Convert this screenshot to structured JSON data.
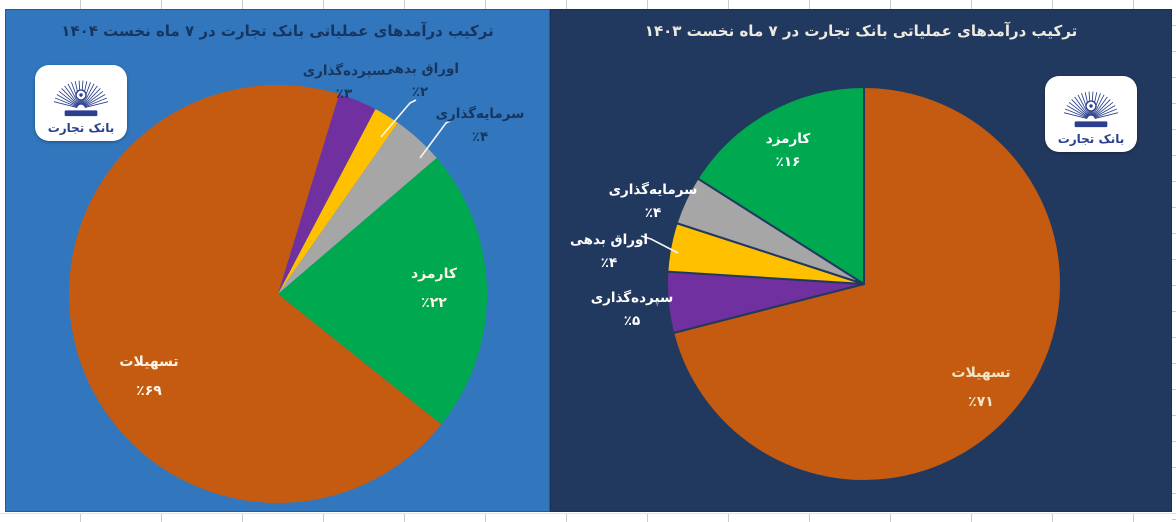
{
  "page": {
    "background": "#ffffff",
    "gridline_color": "#c9ced4"
  },
  "logo": {
    "text": "بانک تجارت",
    "emblem_color": "#2B3F8C",
    "box_color": "#ffffff"
  },
  "chart_data": [
    {
      "type": "pie",
      "title": "ترکیب درآمدهای عملیاتی بانک تجارت در ۷ ماه نخست ۱۴۰۴",
      "panel_bg": "#3277BD",
      "title_color": "#17355E",
      "start_angle": 17,
      "slice_stroke": "none",
      "legend_position": "labels-on-and-around-pie",
      "categories": [
        "سپرده‌گذاری",
        "اوراق بدهی",
        "سرمایه‌گذاری",
        "کارمزد",
        "تسهیلات"
      ],
      "values": [
        3,
        2,
        4,
        22,
        69
      ],
      "slices": [
        {
          "key": "deposit",
          "name": "سپرده‌گذاری",
          "value": 3,
          "pct_label": "٪۳",
          "color": "#7030A0"
        },
        {
          "key": "debt-securities",
          "name": "اوراق بدهی",
          "value": 2,
          "pct_label": "٪۲",
          "color": "#FFC000"
        },
        {
          "key": "investment",
          "name": "سرمایه‌گذاری",
          "value": 4,
          "pct_label": "٪۴",
          "color": "#A6A6A6"
        },
        {
          "key": "fees",
          "name": "کارمزد",
          "value": 22,
          "pct_label": "٪۲۲",
          "color": "#00A84F"
        },
        {
          "key": "facilities",
          "name": "تسهیلات",
          "value": 69,
          "pct_label": "٪۶۹",
          "color": "#C55A11"
        }
      ]
    },
    {
      "type": "pie",
      "title": "ترکیب درآمدهای عملیاتی بانک تجارت در ۷ ماه نخست ۱۴۰۳",
      "panel_bg": "#22395F",
      "title_color": "#EDEAE0",
      "start_angle": 0,
      "slice_stroke": "#22395F",
      "legend_position": "labels-on-and-around-pie",
      "categories": [
        "تسهیلات",
        "سپرده‌گذاری",
        "اوراق بدهی",
        "سرمایه‌گذاری",
        "کارمزد"
      ],
      "values": [
        71,
        5,
        4,
        4,
        16
      ],
      "slices": [
        {
          "key": "facilities",
          "name": "تسهیلات",
          "value": 71,
          "pct_label": "٪۷۱",
          "color": "#C55A11"
        },
        {
          "key": "deposit",
          "name": "سپرده‌گذاری",
          "value": 5,
          "pct_label": "٪۵",
          "color": "#7030A0"
        },
        {
          "key": "debt-securities",
          "name": "اوراق بدهی",
          "value": 4,
          "pct_label": "٪۴",
          "color": "#FFC000"
        },
        {
          "key": "investment",
          "name": "سرمایه‌گذاری",
          "value": 4,
          "pct_label": "٪۴",
          "color": "#A6A6A6"
        },
        {
          "key": "fees",
          "name": "کارمزد",
          "value": 16,
          "pct_label": "٪۱۶",
          "color": "#00A84F"
        }
      ]
    }
  ]
}
